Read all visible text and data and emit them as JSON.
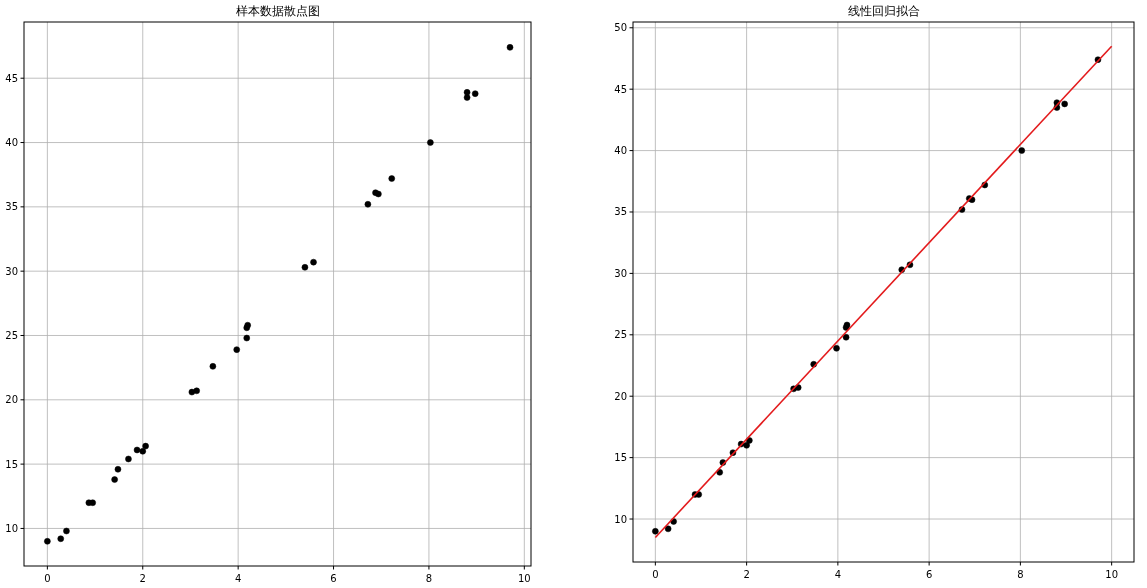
{
  "chart_data": [
    {
      "type": "scatter",
      "title": "样本数据散点图",
      "xlim": [
        -0.49,
        10.14
      ],
      "ylim": [
        7.08,
        49.37
      ],
      "xticks": [
        0,
        2,
        4,
        6,
        8,
        10
      ],
      "yticks": [
        10,
        15,
        20,
        25,
        30,
        35,
        40,
        45
      ],
      "grid": true,
      "marker": "circle",
      "series": [
        {
          "color": "#000000",
          "x": [
            0,
            0.28,
            0.4,
            0.87,
            0.95,
            1.41,
            1.48,
            1.7,
            1.88,
            2.0,
            2.06,
            3.03,
            3.13,
            3.47,
            3.97,
            4.18,
            4.18,
            4.2,
            5.4,
            5.58,
            6.72,
            6.88,
            6.94,
            7.22,
            8.03,
            8.8,
            8.8,
            8.97,
            9.7
          ],
          "values": [
            9.0,
            9.2,
            9.8,
            12.0,
            12.0,
            13.8,
            14.6,
            15.4,
            16.1,
            16.0,
            16.4,
            20.6,
            20.7,
            22.6,
            23.9,
            24.8,
            25.6,
            25.8,
            30.3,
            30.7,
            35.2,
            36.1,
            36.0,
            37.2,
            40.0,
            43.5,
            43.9,
            43.8,
            47.4
          ]
        }
      ]
    },
    {
      "type": "scatter",
      "title": "线性回归拟合",
      "xlim": [
        -0.49,
        10.49
      ],
      "ylim": [
        6.5,
        50.47
      ],
      "xticks": [
        0,
        2,
        4,
        6,
        8,
        10
      ],
      "yticks": [
        10,
        15,
        20,
        25,
        30,
        35,
        40,
        45,
        50
      ],
      "grid": true,
      "marker": "circle",
      "series": [
        {
          "color": "#000000",
          "x": [
            0,
            0.28,
            0.4,
            0.87,
            0.95,
            1.41,
            1.48,
            1.7,
            1.88,
            2.0,
            2.06,
            3.03,
            3.13,
            3.47,
            3.97,
            4.18,
            4.18,
            4.2,
            5.4,
            5.58,
            6.72,
            6.88,
            6.94,
            7.22,
            8.03,
            8.8,
            8.8,
            8.97,
            9.7
          ],
          "values": [
            9.0,
            9.2,
            9.8,
            12.0,
            12.0,
            13.8,
            14.6,
            15.4,
            16.1,
            16.0,
            16.4,
            20.6,
            20.7,
            22.6,
            23.9,
            24.8,
            25.6,
            25.8,
            30.3,
            30.7,
            35.2,
            36.1,
            36.0,
            37.2,
            40.0,
            43.5,
            43.9,
            43.8,
            47.4
          ]
        },
        {
          "type": "line",
          "color": "#e31a1c",
          "x": [
            0,
            10
          ],
          "values": [
            8.5,
            48.5
          ],
          "marker": "none"
        }
      ]
    }
  ]
}
